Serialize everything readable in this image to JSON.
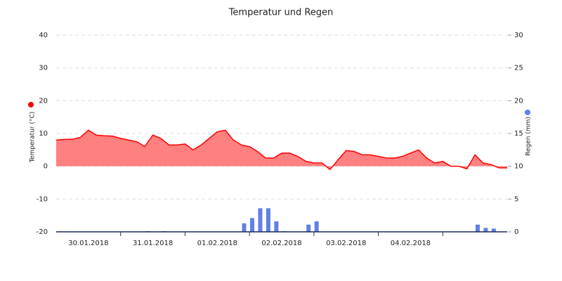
{
  "chart_data": {
    "type": "area",
    "title": "Temperatur und Regen",
    "y_label": "Temperatur (°C)",
    "y2_label": "Regen (mm)",
    "xlim": [
      0,
      168
    ],
    "xticks": [
      {
        "value": 12,
        "label": "30.01.2018"
      },
      {
        "value": 36,
        "label": "31.01.2018"
      },
      {
        "value": 60,
        "label": "01.02.2018"
      },
      {
        "value": 84,
        "label": "02.02.2018"
      },
      {
        "value": 108,
        "label": "03.02.2018"
      },
      {
        "value": 132,
        "label": "04.02.2018"
      }
    ],
    "ylim": [
      -20,
      40
    ],
    "yticks": [
      -20,
      -10,
      0,
      10,
      20,
      30,
      40
    ],
    "y2lim": [
      0,
      30
    ],
    "y2ticks": [
      0,
      5,
      10,
      15,
      20,
      25,
      30
    ],
    "grid": true,
    "series": [
      {
        "name": "Temperatur",
        "type": "area",
        "color": "#ff0000",
        "fill": "#ff8080",
        "x": [
          0,
          3,
          6,
          9,
          12,
          15,
          18,
          21,
          24,
          27,
          30,
          33,
          36,
          39,
          42,
          45,
          48,
          51,
          54,
          57,
          60,
          63,
          66,
          69,
          72,
          75,
          78,
          81,
          84,
          87,
          90,
          93,
          96,
          99,
          102,
          105,
          108,
          111,
          114,
          117,
          120,
          123,
          126,
          129,
          132,
          135,
          138,
          141,
          144,
          147,
          150,
          153,
          156,
          159,
          162,
          165,
          168
        ],
        "values": [
          8,
          8.2,
          8.2,
          8.8,
          11,
          9.5,
          9.3,
          9.2,
          8.5,
          8,
          7.5,
          6,
          9.5,
          8.5,
          6.5,
          6.5,
          6.8,
          5,
          6.5,
          8.5,
          10.5,
          11,
          8,
          6.5,
          6,
          4.5,
          2.5,
          2.5,
          4,
          4,
          3,
          1.5,
          1,
          1,
          -1,
          2,
          4.8,
          4.5,
          3.5,
          3.5,
          3,
          2.5,
          2.5,
          3,
          4,
          5,
          2.5,
          1,
          1.5,
          0,
          0,
          -0.8,
          3.5,
          1,
          0.5,
          -0.5,
          -0.5
        ]
      },
      {
        "name": "Regen",
        "type": "bar",
        "axis": "y2",
        "color": "#6080e8",
        "x": [
          34,
          40,
          70,
          73,
          76,
          79,
          82,
          85,
          94,
          97,
          157,
          160,
          163
        ],
        "values": [
          0.1,
          0.1,
          1.3,
          2.1,
          3.6,
          3.6,
          1.6,
          0.1,
          1.1,
          1.6,
          1.1,
          0.6,
          0.5
        ]
      }
    ]
  }
}
